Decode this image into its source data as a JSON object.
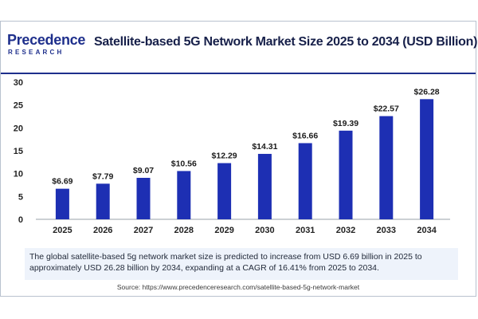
{
  "logo": {
    "main": "Precedence",
    "sub": "RESEARCH"
  },
  "title": "Satellite-based 5G Network Market Size 2025 to 2034 (USD Billion)",
  "summary": "The global satellite-based 5g network market size is predicted to increase from USD 6.69 billion in 2025 to approximately USD 26.28 billion by 2034, expanding at a CAGR of 16.41% from 2025 to 2034.",
  "source": "Source: https://www.precedenceresearch.com/satellite-based-5g-network-market",
  "colors": {
    "bar": "#1d2fb3",
    "brand": "#1e2f8c",
    "text": "#17204a"
  },
  "chart_data": {
    "type": "bar",
    "categories": [
      "2025",
      "2026",
      "2027",
      "2028",
      "2029",
      "2030",
      "2031",
      "2032",
      "2033",
      "2034"
    ],
    "values": [
      6.69,
      7.79,
      9.07,
      10.56,
      12.29,
      14.31,
      16.66,
      19.39,
      22.57,
      26.28
    ],
    "value_labels": [
      "$6.69",
      "$7.79",
      "$9.07",
      "$10.56",
      "$12.29",
      "$14.31",
      "$16.66",
      "$19.39",
      "$22.57",
      "$26.28"
    ],
    "ylim": [
      0,
      30
    ],
    "yticks": [
      "0",
      "5",
      "10",
      "15",
      "20",
      "25",
      "30"
    ],
    "grid": false,
    "legend": "none"
  }
}
